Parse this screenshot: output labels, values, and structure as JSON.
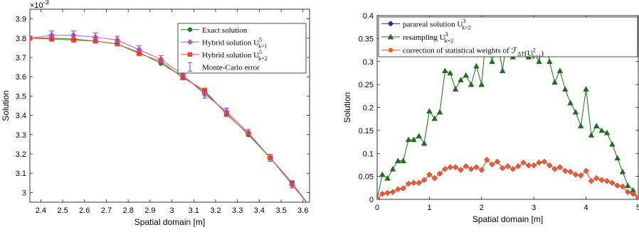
{
  "chart_data": [
    {
      "type": "line",
      "title": "",
      "xlabel": "Spatial domain [m]",
      "ylabel": "Solution",
      "y_multiplier": "×10",
      "y_multiplier_exp": "-3",
      "xlim": [
        2.35,
        3.63
      ],
      "ylim": [
        2.95,
        3.95
      ],
      "xticks": [
        "2.4",
        "2.5",
        "2.6",
        "2.7",
        "2.8",
        "2.9",
        "3",
        "3.1",
        "3.2",
        "3.3",
        "3.4",
        "3.5",
        "3.6"
      ],
      "yticks": [
        "3",
        "3.1",
        "3.2",
        "3.3",
        "3.4",
        "3.5",
        "3.6",
        "3.7",
        "3.8",
        "3.9"
      ],
      "legend_position": "top-right",
      "series": [
        {
          "name": "Exact solution",
          "color": "#1e7a1e",
          "marker": "circle",
          "x": [
            2.35,
            2.45,
            2.55,
            2.65,
            2.75,
            2.85,
            2.95,
            3.05,
            3.15,
            3.25,
            3.35,
            3.45,
            3.55,
            3.63
          ],
          "y": [
            3.8,
            3.8,
            3.795,
            3.785,
            3.77,
            3.725,
            3.67,
            3.6,
            3.52,
            3.41,
            3.3,
            3.18,
            3.05,
            2.93
          ]
        },
        {
          "name": "Hybrid solution U",
          "name_sup": "5",
          "name_sub": "k=1",
          "color": "#b05cc8",
          "marker": "diamond",
          "x": [
            2.35,
            2.45,
            2.55,
            2.65,
            2.75,
            2.85,
            2.95,
            3.05,
            3.15,
            3.25,
            3.35,
            3.45,
            3.55,
            3.63
          ],
          "y": [
            3.8,
            3.815,
            3.815,
            3.805,
            3.79,
            3.74,
            3.69,
            3.61,
            3.51,
            3.42,
            3.31,
            3.18,
            3.04,
            2.93
          ]
        },
        {
          "name": "Hybrid solution U",
          "name_sup": "5",
          "name_sub": "k=2",
          "color": "#e8502a",
          "marker": "square",
          "x": [
            2.35,
            2.45,
            2.55,
            2.65,
            2.75,
            2.85,
            2.95,
            3.05,
            3.15,
            3.25,
            3.35,
            3.45,
            3.55,
            3.63
          ],
          "y": [
            3.8,
            3.795,
            3.79,
            3.785,
            3.77,
            3.72,
            3.68,
            3.595,
            3.53,
            3.405,
            3.305,
            3.18,
            3.05,
            2.93
          ]
        },
        {
          "name": "Monte-Carlo error",
          "color": "#7a3fa8",
          "marker": "errorbar",
          "x": [
            2.45,
            2.55,
            2.65,
            2.75,
            2.85,
            2.95,
            3.05,
            3.15,
            3.25,
            3.35,
            3.45,
            3.55
          ],
          "y": [
            3.815,
            3.815,
            3.805,
            3.79,
            3.74,
            3.69,
            3.61,
            3.51,
            3.42,
            3.31,
            3.18,
            3.04
          ],
          "err": [
            0.022,
            0.022,
            0.022,
            0.02,
            0.02,
            0.02,
            0.02,
            0.02,
            0.018,
            0.018,
            0.018,
            0.016
          ]
        }
      ]
    },
    {
      "type": "line",
      "title": "",
      "xlabel": "Spatial domain [m]",
      "ylabel": "Solution",
      "xlim": [
        0,
        5
      ],
      "ylim": [
        0,
        0.4
      ],
      "xticks": [
        "0",
        "1",
        "2",
        "3",
        "4",
        "5"
      ],
      "yticks": [
        "0",
        "0.05",
        "0.1",
        "0.15",
        "0.2",
        "0.25",
        "0.3",
        "0.35",
        "0.4"
      ],
      "legend_position": "top-right",
      "series": [
        {
          "name": "parareal solution U",
          "name_sup": "3",
          "name_sub": "k=2",
          "color": "#1f2f8f",
          "marker": "diamond",
          "x": [
            0,
            0.1,
            0.2,
            0.3,
            0.4,
            0.5,
            0.6,
            0.7,
            0.8,
            0.9,
            1.0,
            1.1,
            1.2,
            1.3,
            1.4,
            1.5,
            1.6,
            1.7,
            1.8,
            1.9,
            2.0,
            2.1,
            2.2,
            2.3,
            2.4,
            2.5,
            2.6,
            2.7,
            2.8,
            2.9,
            3.0,
            3.1,
            3.2,
            3.3,
            3.4,
            3.5,
            3.6,
            3.7,
            3.8,
            3.9,
            4.0,
            4.1,
            4.2,
            4.3,
            4.4,
            4.5,
            4.6,
            4.7,
            4.8,
            4.9,
            5.0
          ],
          "y": [
            0.002,
            0.012,
            0.014,
            0.016,
            0.022,
            0.024,
            0.034,
            0.036,
            0.036,
            0.042,
            0.054,
            0.046,
            0.056,
            0.066,
            0.07,
            0.07,
            0.064,
            0.072,
            0.066,
            0.07,
            0.064,
            0.086,
            0.076,
            0.082,
            0.068,
            0.072,
            0.066,
            0.072,
            0.08,
            0.074,
            0.074,
            0.08,
            0.082,
            0.074,
            0.066,
            0.07,
            0.062,
            0.06,
            0.054,
            0.052,
            0.062,
            0.04,
            0.046,
            0.042,
            0.04,
            0.036,
            0.03,
            0.028,
            0.016,
            0.012,
            0.004
          ]
        },
        {
          "name": "resampling U",
          "name_sup": "3",
          "name_sub": "k=2",
          "color": "#1e6e1e",
          "marker": "triangle",
          "x": [
            0,
            0.1,
            0.2,
            0.3,
            0.4,
            0.5,
            0.6,
            0.7,
            0.8,
            0.9,
            1.0,
            1.1,
            1.2,
            1.3,
            1.4,
            1.5,
            1.6,
            1.7,
            1.8,
            1.9,
            2.0,
            2.1,
            2.2,
            2.3,
            2.4,
            2.5,
            2.6,
            2.7,
            2.8,
            2.9,
            3.0,
            3.1,
            3.2,
            3.3,
            3.4,
            3.5,
            3.6,
            3.7,
            3.8,
            3.9,
            4.0,
            4.1,
            4.2,
            4.3,
            4.4,
            4.5,
            4.6,
            4.7,
            4.8,
            4.9,
            5.0
          ],
          "y": [
            0.002,
            0.054,
            0.046,
            0.066,
            0.084,
            0.084,
            0.13,
            0.13,
            0.138,
            0.122,
            0.192,
            0.176,
            0.19,
            0.28,
            0.275,
            0.24,
            0.26,
            0.27,
            0.25,
            0.29,
            0.25,
            0.375,
            0.3,
            0.35,
            0.28,
            0.36,
            0.31,
            0.32,
            0.335,
            0.31,
            0.32,
            0.3,
            0.38,
            0.3,
            0.255,
            0.28,
            0.24,
            0.21,
            0.19,
            0.16,
            0.24,
            0.14,
            0.16,
            0.15,
            0.145,
            0.12,
            0.09,
            0.06,
            0.03,
            0.02,
            0.002
          ]
        },
        {
          "name": "correction of statistical weights of ℱ",
          "name_sub": "ΔT",
          "name_tail": "(U",
          "name_tail_sup": "2",
          "name_tail_sub": "k=1",
          "name_end": ")",
          "color": "#f05a28",
          "marker": "circle",
          "x": [
            0,
            0.1,
            0.2,
            0.3,
            0.4,
            0.5,
            0.6,
            0.7,
            0.8,
            0.9,
            1.0,
            1.1,
            1.2,
            1.3,
            1.4,
            1.5,
            1.6,
            1.7,
            1.8,
            1.9,
            2.0,
            2.1,
            2.2,
            2.3,
            2.4,
            2.5,
            2.6,
            2.7,
            2.8,
            2.9,
            3.0,
            3.1,
            3.2,
            3.3,
            3.4,
            3.5,
            3.6,
            3.7,
            3.8,
            3.9,
            4.0,
            4.1,
            4.2,
            4.3,
            4.4,
            4.5,
            4.6,
            4.7,
            4.8,
            4.9,
            5.0
          ],
          "y": [
            0.002,
            0.012,
            0.014,
            0.016,
            0.022,
            0.024,
            0.034,
            0.036,
            0.036,
            0.042,
            0.054,
            0.046,
            0.056,
            0.066,
            0.07,
            0.07,
            0.064,
            0.072,
            0.066,
            0.07,
            0.064,
            0.086,
            0.076,
            0.082,
            0.068,
            0.072,
            0.066,
            0.072,
            0.08,
            0.074,
            0.074,
            0.08,
            0.082,
            0.074,
            0.066,
            0.07,
            0.062,
            0.06,
            0.054,
            0.052,
            0.062,
            0.04,
            0.046,
            0.042,
            0.04,
            0.036,
            0.03,
            0.028,
            0.016,
            0.012,
            0.004
          ]
        }
      ]
    }
  ]
}
